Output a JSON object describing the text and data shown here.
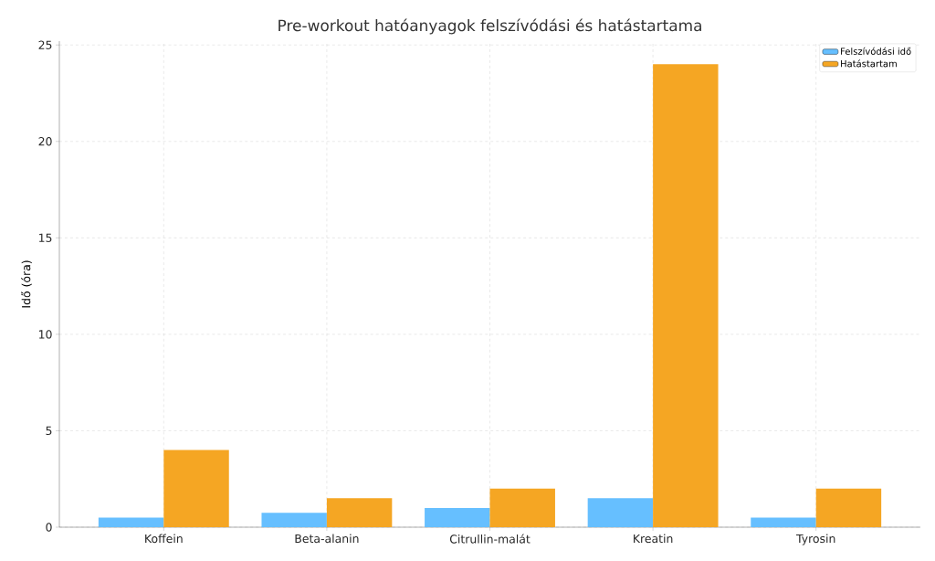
{
  "chart_data": {
    "type": "bar",
    "title": "Pre-workout hatóanyagok felszívódási és hatástartama",
    "ylabel": "Idő (óra)",
    "categories": [
      "Koffein",
      "Beta-alanin",
      "Citrullin-malát",
      "Kreatin",
      "Tyrosin"
    ],
    "series": [
      {
        "name": "Felszívódási idő",
        "color": "#66bfff",
        "values": [
          0.5,
          0.75,
          1,
          1.5,
          0.5
        ]
      },
      {
        "name": "Hatástartam",
        "color": "#f5a623",
        "values": [
          4,
          1.5,
          2,
          24,
          2
        ]
      }
    ],
    "ylim": [
      0,
      25.2
    ],
    "yticks": [
      0,
      5,
      10,
      15,
      20,
      25
    ],
    "grid": true,
    "legend": "top right"
  }
}
